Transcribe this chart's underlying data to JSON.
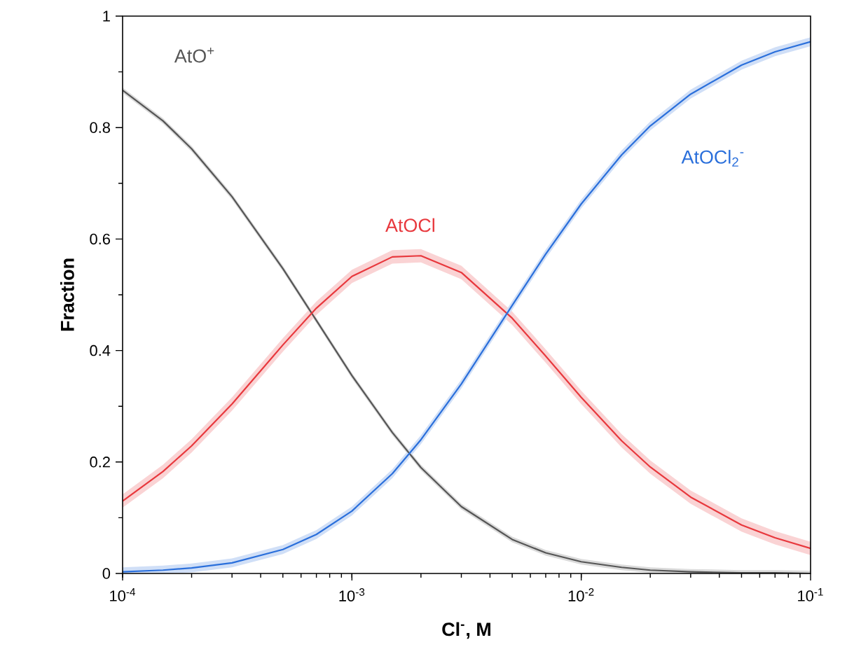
{
  "chart_data": {
    "type": "line",
    "xlabel": "Cl$^{-}$, M",
    "ylabel": "Fraction",
    "log": "x",
    "grid": false,
    "legend": false,
    "marker": "none",
    "line_style": "solid",
    "x": [
      0.0001,
      0.00015,
      0.0002,
      0.0003,
      0.0005,
      0.0007,
      0.001,
      0.0015,
      0.002,
      0.003,
      0.005,
      0.007,
      0.01,
      0.015,
      0.02,
      0.03,
      0.05,
      0.07,
      0.1
    ],
    "xlim": [
      0.0001,
      0.1
    ],
    "ylim": [
      0,
      1
    ],
    "xticks": [
      {
        "value": 0.0001,
        "label": "10$^{-4}$"
      },
      {
        "value": 0.001,
        "label": "10$^{-3}$"
      },
      {
        "value": 0.01,
        "label": "10$^{-2}$"
      },
      {
        "value": 0.1,
        "label": "10$^{-1}$"
      }
    ],
    "yticks": [
      0,
      0.2,
      0.4,
      0.6,
      0.8,
      1
    ],
    "series": [
      {
        "name": "AtO$^{+}$",
        "color": "#555555",
        "values": [
          0.867,
          0.812,
          0.762,
          0.676,
          0.547,
          0.454,
          0.355,
          0.253,
          0.19,
          0.12,
          0.061,
          0.037,
          0.021,
          0.011,
          0.006,
          0.003,
          0.001,
          0.001,
          0.0
        ],
        "lower": [
          0.862,
          0.807,
          0.757,
          0.671,
          0.542,
          0.449,
          0.35,
          0.248,
          0.185,
          0.115,
          0.056,
          0.032,
          0.016,
          0.006,
          0.001,
          0,
          0.0005,
          0.0005,
          0
        ],
        "upper": [
          0.872,
          0.817,
          0.767,
          0.681,
          0.552,
          0.459,
          0.36,
          0.258,
          0.195,
          0.125,
          0.066,
          0.042,
          0.026,
          0.016,
          0.011,
          0.008,
          0.006,
          0.006,
          0.005
        ]
      },
      {
        "name": "AtOCl",
        "color": "#e8383d",
        "values": [
          0.13,
          0.183,
          0.229,
          0.304,
          0.41,
          0.476,
          0.533,
          0.568,
          0.57,
          0.54,
          0.458,
          0.39,
          0.316,
          0.238,
          0.191,
          0.137,
          0.087,
          0.064,
          0.045
        ],
        "lower": [
          0.118,
          0.171,
          0.217,
          0.292,
          0.398,
          0.464,
          0.521,
          0.556,
          0.558,
          0.528,
          0.446,
          0.378,
          0.304,
          0.226,
          0.179,
          0.125,
          0.075,
          0.052,
          0.033
        ],
        "upper": [
          0.142,
          0.195,
          0.241,
          0.316,
          0.422,
          0.488,
          0.545,
          0.58,
          0.582,
          0.552,
          0.47,
          0.402,
          0.328,
          0.25,
          0.203,
          0.149,
          0.099,
          0.076,
          0.057
        ]
      },
      {
        "name": "AtOCl$_{2}$$^{-}$",
        "color": "#2a6fdb",
        "values": [
          0.003,
          0.006,
          0.01,
          0.019,
          0.043,
          0.07,
          0.112,
          0.179,
          0.24,
          0.34,
          0.481,
          0.573,
          0.663,
          0.751,
          0.803,
          0.86,
          0.912,
          0.936,
          0.954
        ],
        "lower": [
          0,
          0,
          0.002,
          0.011,
          0.035,
          0.062,
          0.104,
          0.171,
          0.232,
          0.332,
          0.473,
          0.565,
          0.655,
          0.743,
          0.795,
          0.852,
          0.904,
          0.928,
          0.946
        ],
        "upper": [
          0.011,
          0.014,
          0.018,
          0.027,
          0.051,
          0.078,
          0.12,
          0.187,
          0.248,
          0.348,
          0.489,
          0.581,
          0.671,
          0.759,
          0.811,
          0.868,
          0.92,
          0.944,
          0.962
        ]
      }
    ]
  }
}
